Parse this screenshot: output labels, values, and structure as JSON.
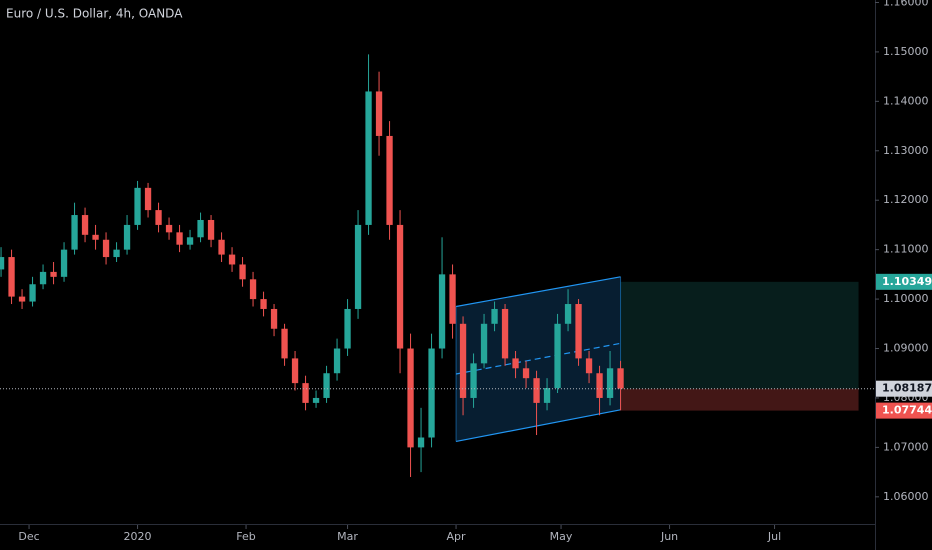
{
  "chart_data": {
    "type": "candlestick",
    "title": "Euro / U.S. Dollar, 4h, OANDA",
    "up_color": "#26a69a",
    "down_color": "#ef5350",
    "grid": false,
    "xlim": [
      -8.3,
      241.7
    ],
    "ylim": [
      1.0543,
      1.1605
    ],
    "xticks": [
      {
        "value": 0,
        "label": "Dec"
      },
      {
        "value": 31,
        "label": "2020"
      },
      {
        "value": 62,
        "label": "Feb"
      },
      {
        "value": 91,
        "label": "Mar"
      },
      {
        "value": 122,
        "label": "Apr"
      },
      {
        "value": 152,
        "label": "May"
      },
      {
        "value": 183,
        "label": "Jun"
      },
      {
        "value": 213,
        "label": "Jul"
      }
    ],
    "yticks": [
      {
        "value": 1.16,
        "label": "1.16000"
      },
      {
        "value": 1.15,
        "label": "1.15000"
      },
      {
        "value": 1.14,
        "label": "1.14000"
      },
      {
        "value": 1.13,
        "label": "1.13000"
      },
      {
        "value": 1.12,
        "label": "1.12000"
      },
      {
        "value": 1.11,
        "label": "1.11000"
      },
      {
        "value": 1.1,
        "label": "1.10000"
      },
      {
        "value": 1.09,
        "label": "1.09000"
      },
      {
        "value": 1.08,
        "label": "1.08000"
      },
      {
        "value": 1.07,
        "label": "1.07000"
      },
      {
        "value": 1.06,
        "label": "1.06000"
      }
    ],
    "x": [
      -8,
      -5,
      -2,
      1,
      4,
      7,
      10,
      13,
      16,
      19,
      22,
      25,
      28,
      31,
      34,
      37,
      40,
      43,
      46,
      49,
      52,
      55,
      58,
      61,
      64,
      67,
      70,
      73,
      76,
      79,
      82,
      85,
      88,
      91,
      94,
      97,
      100,
      103,
      106,
      109,
      112,
      115,
      118,
      121,
      124,
      127,
      130,
      133,
      136,
      139,
      142,
      145,
      148,
      151,
      154,
      157,
      160,
      163,
      166,
      169
    ],
    "open": [
      1.106,
      1.1085,
      1.1005,
      1.0995,
      1.103,
      1.1055,
      1.1045,
      1.11,
      1.117,
      1.113,
      1.112,
      1.1085,
      1.11,
      1.115,
      1.1225,
      1.118,
      1.115,
      1.1135,
      1.111,
      1.1125,
      1.116,
      1.112,
      1.109,
      1.107,
      1.104,
      1.1,
      1.098,
      1.094,
      1.088,
      1.083,
      1.079,
      1.08,
      1.085,
      1.09,
      1.098,
      1.115,
      1.142,
      1.133,
      1.115,
      1.09,
      1.07,
      1.072,
      1.09,
      1.105,
      1.095,
      1.08,
      1.087,
      1.095,
      1.098,
      1.088,
      1.086,
      1.084,
      1.079,
      1.082,
      1.095,
      1.099,
      1.088,
      1.085,
      1.08,
      1.086
    ],
    "high": [
      1.1105,
      1.11,
      1.102,
      1.1045,
      1.107,
      1.1075,
      1.1115,
      1.1195,
      1.1185,
      1.115,
      1.1135,
      1.1115,
      1.117,
      1.1239,
      1.1235,
      1.1195,
      1.1165,
      1.115,
      1.114,
      1.1175,
      1.117,
      1.1135,
      1.1105,
      1.1085,
      1.1055,
      1.1015,
      1.099,
      1.095,
      1.0895,
      1.0845,
      1.0815,
      1.0865,
      1.092,
      1.1,
      1.118,
      1.1495,
      1.146,
      1.136,
      1.118,
      1.093,
      1.078,
      1.093,
      1.1125,
      1.107,
      1.0965,
      1.089,
      1.097,
      1.0995,
      1.099,
      1.0895,
      1.0875,
      1.0855,
      1.084,
      1.097,
      1.102,
      1.1,
      1.0895,
      1.0865,
      1.0895,
      1.0875
    ],
    "low": [
      1.1045,
      1.099,
      1.098,
      1.0985,
      1.102,
      1.103,
      1.1035,
      1.109,
      1.1115,
      1.11,
      1.107,
      1.1075,
      1.109,
      1.114,
      1.1165,
      1.1135,
      1.112,
      1.1095,
      1.11,
      1.1115,
      1.1105,
      1.1075,
      1.1055,
      1.1025,
      1.0985,
      1.0965,
      1.0925,
      1.0865,
      1.0815,
      1.0775,
      1.078,
      1.079,
      1.0835,
      1.0885,
      1.096,
      1.113,
      1.129,
      1.112,
      1.085,
      1.064,
      1.065,
      1.07,
      1.088,
      1.092,
      1.0765,
      1.078,
      1.086,
      1.0935,
      1.0865,
      1.084,
      1.082,
      1.0725,
      1.0775,
      1.081,
      1.0935,
      1.0865,
      1.083,
      1.0765,
      1.0785,
      1.0775
    ],
    "close": [
      1.1085,
      1.1005,
      1.0995,
      1.103,
      1.1055,
      1.1045,
      1.11,
      1.117,
      1.113,
      1.112,
      1.1085,
      1.11,
      1.115,
      1.1225,
      1.118,
      1.115,
      1.1135,
      1.111,
      1.1125,
      1.116,
      1.112,
      1.109,
      1.107,
      1.104,
      1.1,
      1.098,
      1.094,
      1.088,
      1.083,
      1.079,
      1.08,
      1.085,
      1.09,
      1.098,
      1.115,
      1.142,
      1.133,
      1.115,
      1.09,
      1.07,
      1.072,
      1.09,
      1.105,
      1.095,
      1.08,
      1.087,
      1.095,
      1.098,
      1.088,
      1.086,
      1.084,
      1.079,
      1.082,
      1.095,
      1.099,
      1.088,
      1.085,
      1.08,
      1.086,
      1.0819
    ],
    "channel": {
      "start": 122,
      "end": 169,
      "lower": [
        1.0712,
        1.0776
      ],
      "upper": [
        1.0985,
        1.1045
      ],
      "color": "#2196f3"
    },
    "position": {
      "start": 169,
      "end": 237,
      "entry": 1.08187,
      "target": 1.10349,
      "stop": 1.07744
    }
  }
}
